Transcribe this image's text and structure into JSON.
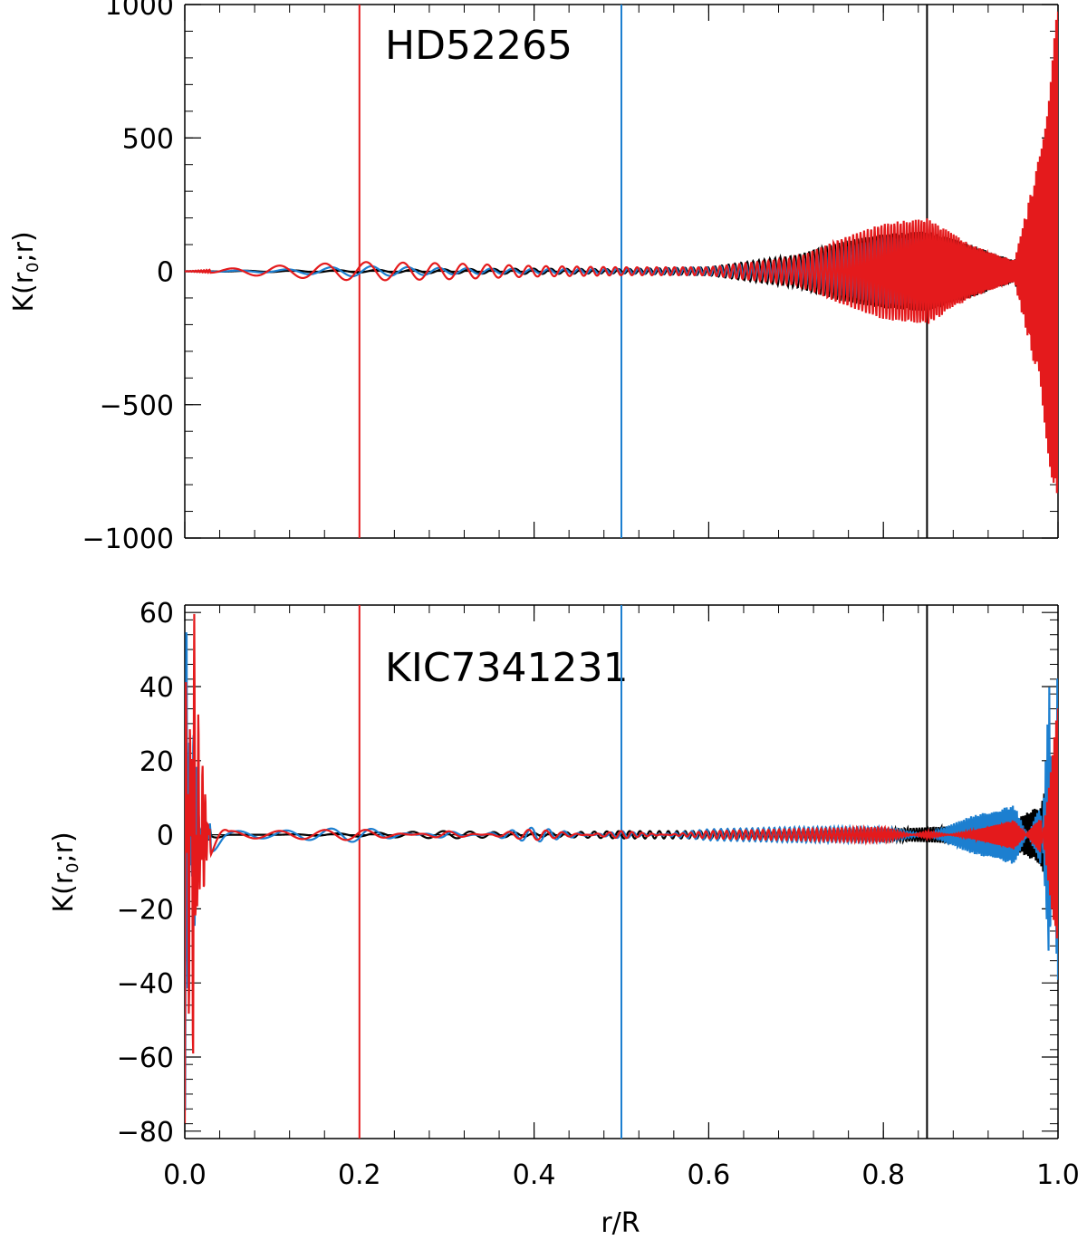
{
  "chart_data": [
    {
      "type": "line",
      "title": "HD52265",
      "xlabel": "",
      "ylabel": "K(r",
      "ylabel_sub": "0",
      "ylabel_tail": ";r)",
      "xlim": [
        0.0,
        1.0
      ],
      "ylim": [
        -1000,
        1000
      ],
      "yticks": [
        -1000,
        -500,
        0,
        500,
        1000
      ],
      "ytick_labels": [
        "−1000",
        "−500",
        "0",
        "500",
        "1000"
      ],
      "xticks": [
        0.0,
        0.2,
        0.4,
        0.6,
        0.8,
        1.0
      ],
      "zero_line": true,
      "grid": false,
      "vlines": [
        {
          "x": 0.2,
          "color": "#e41a1c"
        },
        {
          "x": 0.5,
          "color": "#1c7fd0"
        },
        {
          "x": 0.85,
          "color": "#000000"
        }
      ],
      "series": [
        {
          "color": "#000000",
          "x": [
            0.0,
            0.1,
            0.2,
            0.3,
            0.4,
            0.5,
            0.6,
            0.7,
            0.75,
            0.8,
            0.85,
            0.9,
            0.95,
            0.98,
            1.0
          ],
          "y": [
            0,
            3,
            5,
            8,
            10,
            8,
            15,
            60,
            110,
            140,
            150,
            100,
            40,
            300,
            700
          ]
        },
        {
          "color": "#1c7fd0",
          "x": [
            0.0,
            0.1,
            0.2,
            0.3,
            0.4,
            0.5,
            0.6,
            0.7,
            0.75,
            0.8,
            0.85,
            0.9,
            0.95,
            0.98,
            1.0
          ],
          "y": [
            0,
            5,
            20,
            12,
            8,
            10,
            15,
            40,
            90,
            130,
            120,
            60,
            20,
            100,
            50
          ]
        },
        {
          "color": "#e41a1c",
          "x": [
            0.0,
            0.1,
            0.2,
            0.3,
            0.4,
            0.5,
            0.6,
            0.7,
            0.75,
            0.8,
            0.85,
            0.9,
            0.95,
            0.98,
            1.0
          ],
          "y": [
            0,
            20,
            35,
            30,
            20,
            15,
            15,
            50,
            120,
            180,
            200,
            100,
            40,
            450,
            1000
          ]
        }
      ]
    },
    {
      "type": "line",
      "title": "KIC7341231",
      "xlabel": "r/R",
      "ylabel": "K(r",
      "ylabel_sub": "0",
      "ylabel_tail": ";r)",
      "xlim": [
        0.0,
        1.0
      ],
      "ylim": [
        -82,
        62
      ],
      "yticks": [
        -80,
        -60,
        -40,
        -20,
        0,
        20,
        40,
        60
      ],
      "ytick_labels": [
        "−80",
        "−60",
        "−40",
        "−20",
        "0",
        "20",
        "40",
        "60"
      ],
      "xticks": [
        0.0,
        0.2,
        0.4,
        0.6,
        0.8,
        1.0
      ],
      "xtick_labels": [
        "0.0",
        "0.2",
        "0.4",
        "0.6",
        "0.8",
        "1.0"
      ],
      "zero_line": true,
      "grid": false,
      "vlines": [
        {
          "x": 0.2,
          "color": "#e41a1c"
        },
        {
          "x": 0.5,
          "color": "#1c7fd0"
        },
        {
          "x": 0.85,
          "color": "#000000"
        }
      ],
      "series": [
        {
          "color": "#000000",
          "x": [
            0.0,
            0.02,
            0.05,
            0.1,
            0.2,
            0.3,
            0.4,
            0.5,
            0.6,
            0.7,
            0.8,
            0.85,
            0.9,
            0.95,
            0.98,
            1.0
          ],
          "y": [
            0,
            2,
            0,
            0,
            0.5,
            1,
            0.5,
            1,
            1,
            1,
            1.5,
            2,
            2.5,
            4,
            8,
            25
          ]
        },
        {
          "color": "#1c7fd0",
          "x": [
            0.0,
            0.01,
            0.02,
            0.03,
            0.05,
            0.1,
            0.2,
            0.3,
            0.4,
            0.5,
            0.6,
            0.7,
            0.8,
            0.85,
            0.9,
            0.95,
            0.98,
            0.99,
            1.0
          ],
          "y": [
            -80,
            30,
            -10,
            5,
            1,
            1,
            2,
            -1,
            2,
            -1,
            1.5,
            2,
            2,
            0,
            5,
            8,
            -8,
            40,
            -50
          ]
        },
        {
          "color": "#e41a1c",
          "x": [
            0.0,
            0.005,
            0.01,
            0.015,
            0.02,
            0.03,
            0.05,
            0.1,
            0.2,
            0.3,
            0.4,
            0.5,
            0.6,
            0.7,
            0.8,
            0.85,
            0.9,
            0.95,
            0.98,
            1.0
          ],
          "y": [
            -80,
            60,
            -80,
            40,
            -20,
            6,
            1,
            1,
            1.5,
            -1,
            1.5,
            -1,
            1,
            1.5,
            2,
            -1,
            1,
            4,
            -5,
            35
          ]
        }
      ]
    }
  ]
}
